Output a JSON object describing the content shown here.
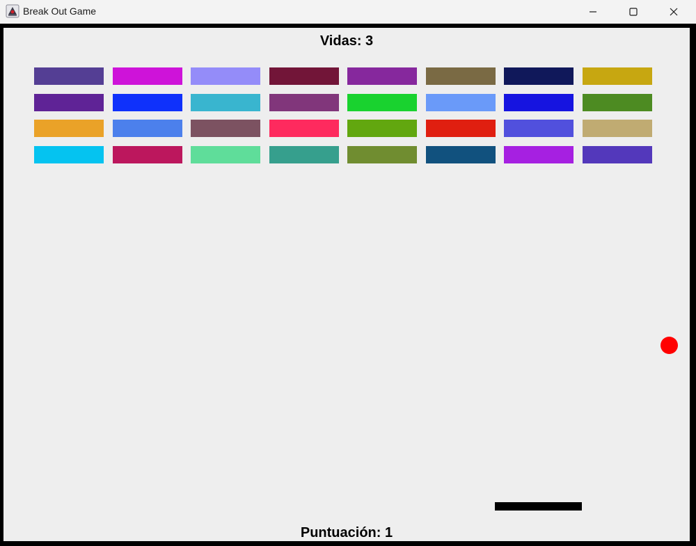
{
  "window": {
    "title": "Break Out Game",
    "app_icon": "java-duke-icon"
  },
  "controls": {
    "minimize_icon": "minimize-icon",
    "maximize_icon": "maximize-icon",
    "close_icon": "close-icon"
  },
  "hud": {
    "lives_label": "Vidas: 3",
    "lives": 3,
    "score_label": "Puntuación: 1",
    "score": 1
  },
  "bricks": {
    "rows": 4,
    "columns": 8,
    "colors": [
      [
        "#543e94",
        "#ce13d9",
        "#948cf9",
        "#721538",
        "#86289d",
        "#7a6a44",
        "#10185a",
        "#c7a711"
      ],
      [
        "#5f2396",
        "#0f31fb",
        "#39b5cf",
        "#81367b",
        "#19d22f",
        "#6a9af9",
        "#1614e0",
        "#4d8b22"
      ],
      [
        "#eaa228",
        "#4c80ec",
        "#7c5261",
        "#fe2a5e",
        "#62a70f",
        "#e01f10",
        "#5150dd",
        "#c0ab72"
      ],
      [
        "#05c3f0",
        "#bc175d",
        "#5fdd9a",
        "#369f8d",
        "#708d30",
        "#11517e",
        "#a620e1",
        "#5338bb"
      ]
    ]
  },
  "ball": {
    "color": "#ff0000"
  },
  "paddle": {
    "color": "#000000"
  }
}
